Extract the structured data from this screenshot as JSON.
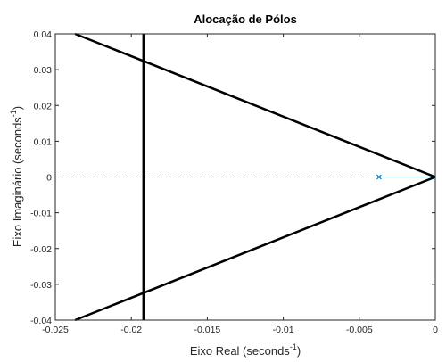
{
  "chart_data": {
    "type": "line",
    "title": "Alocação de Pólos",
    "xlabel": "Eixo Real (seconds",
    "ylabel": "Eixo Imaginário (seconds",
    "unit_exponent": "-1",
    "xlim": [
      -0.025,
      0
    ],
    "ylim": [
      -0.04,
      0.04
    ],
    "xticks": [
      -0.025,
      -0.02,
      -0.015,
      -0.01,
      -0.005,
      0
    ],
    "xtick_labels": [
      "-0.025",
      "-0.02",
      "-0.015",
      "-0.01",
      "-0.005",
      "0"
    ],
    "yticks": [
      0.04,
      0.03,
      0.02,
      0.01,
      0,
      -0.01,
      -0.02,
      -0.03,
      -0.04
    ],
    "ytick_labels": [
      "0.04",
      "0.03",
      "0.02",
      "0.01",
      "0",
      "-0.01",
      "-0.02",
      "-0.03",
      "-0.04"
    ],
    "grid": false,
    "damping_lines": [
      {
        "x": [
          -0.0237,
          0
        ],
        "y": [
          0.04,
          0
        ]
      },
      {
        "x": [
          -0.0237,
          0
        ],
        "y": [
          -0.04,
          0
        ]
      }
    ],
    "vertical_line": {
      "x": -0.0192
    },
    "pole_marker": {
      "x": -0.0037,
      "y": 0
    },
    "pole_segment": {
      "x": [
        -0.0037,
        0
      ],
      "y": [
        0,
        0
      ]
    },
    "zero_line_y": 0,
    "colors": {
      "constraint": "#000000",
      "pole": "#0072bd",
      "axis": "#262626",
      "zero_line": "#555555"
    }
  }
}
